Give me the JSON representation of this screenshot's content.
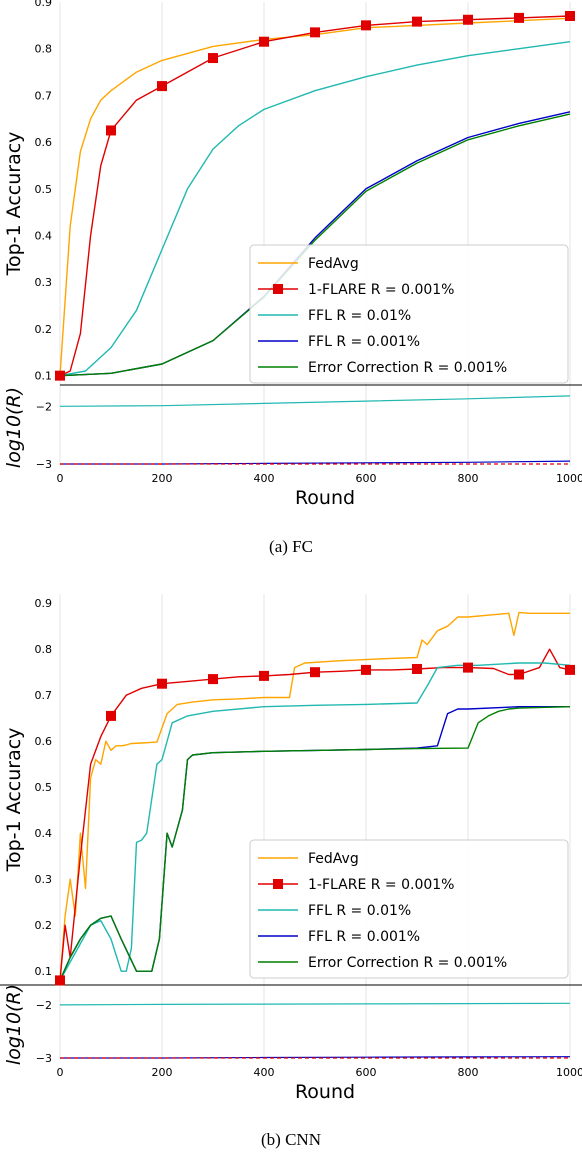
{
  "chart_data": [
    {
      "type": "line",
      "caption": "(a) FC",
      "xlabel": "Round",
      "ylabel": "Top-1 Accuracy",
      "sub_ylabel": "log10(R)",
      "xlim": [
        0,
        1000
      ],
      "ylim": [
        0.08,
        0.9
      ],
      "sub_ylim": [
        -3,
        -1.7
      ],
      "x_ticks": [
        "0",
        "200",
        "400",
        "600",
        "800",
        "1000"
      ],
      "y_ticks": [
        "0.1",
        "0.2",
        "0.3",
        "0.4",
        "0.5",
        "0.6",
        "0.7",
        "0.8",
        "0.9"
      ],
      "sub_y_ticks": [
        "−2",
        "−3"
      ],
      "grid": "vertical",
      "legend_position": "lower-right",
      "series": [
        {
          "name": "FedAvg",
          "color": "#ffa500",
          "marker": "none",
          "x": [
            0,
            20,
            40,
            60,
            80,
            100,
            150,
            200,
            300,
            400,
            500,
            600,
            700,
            800,
            900,
            1000
          ],
          "y": [
            0.1,
            0.42,
            0.58,
            0.65,
            0.69,
            0.71,
            0.75,
            0.775,
            0.805,
            0.82,
            0.83,
            0.845,
            0.85,
            0.855,
            0.86,
            0.865
          ]
        },
        {
          "name": "1-FLARE R = 0.001%",
          "color": "#e00000",
          "marker": "square",
          "x": [
            0,
            20,
            40,
            60,
            80,
            100,
            150,
            200,
            300,
            400,
            500,
            600,
            700,
            800,
            900,
            1000
          ],
          "y": [
            0.1,
            0.11,
            0.19,
            0.4,
            0.55,
            0.625,
            0.69,
            0.72,
            0.78,
            0.815,
            0.835,
            0.85,
            0.858,
            0.862,
            0.866,
            0.87
          ]
        },
        {
          "name": "FFL R = 0.01%",
          "color": "#20b8b0",
          "marker": "none",
          "x": [
            0,
            50,
            100,
            150,
            200,
            250,
            300,
            350,
            400,
            500,
            600,
            700,
            800,
            900,
            1000
          ],
          "y": [
            0.1,
            0.11,
            0.16,
            0.24,
            0.37,
            0.5,
            0.585,
            0.635,
            0.67,
            0.71,
            0.74,
            0.765,
            0.785,
            0.8,
            0.815
          ]
        },
        {
          "name": "FFL R = 0.001%",
          "color": "#0000c8",
          "marker": "none",
          "x": [
            0,
            100,
            200,
            300,
            400,
            500,
            600,
            700,
            800,
            900,
            1000
          ],
          "y": [
            0.1,
            0.105,
            0.125,
            0.175,
            0.27,
            0.395,
            0.5,
            0.56,
            0.61,
            0.64,
            0.665
          ]
        },
        {
          "name": "Error Correction R = 0.001%",
          "color": "#008000",
          "marker": "none",
          "x": [
            0,
            100,
            200,
            300,
            400,
            500,
            600,
            700,
            800,
            900,
            1000
          ],
          "y": [
            0.1,
            0.105,
            0.125,
            0.175,
            0.268,
            0.39,
            0.495,
            0.555,
            0.605,
            0.635,
            0.66
          ]
        }
      ],
      "sub_series": [
        {
          "name": "FFL R = 0.01%",
          "color": "#20b8b0",
          "dash": "solid",
          "x": [
            0,
            200,
            400,
            600,
            800,
            1000
          ],
          "y": [
            -2.0,
            -1.99,
            -1.95,
            -1.91,
            -1.87,
            -1.82
          ]
        },
        {
          "name": "FFL R = 0.001%",
          "color": "#0000c8",
          "dash": "solid",
          "x": [
            0,
            200,
            400,
            600,
            800,
            1000
          ],
          "y": [
            -3.0,
            -3.0,
            -2.99,
            -2.98,
            -2.97,
            -2.95
          ]
        },
        {
          "name": "1-FLARE R = 0.001%",
          "color": "#e00000",
          "dash": "dashed",
          "x": [
            0,
            200,
            400,
            600,
            800,
            1000
          ],
          "y": [
            -3.0,
            -3.0,
            -3.0,
            -3.0,
            -3.0,
            -3.0
          ]
        }
      ]
    },
    {
      "type": "line",
      "caption": "(b) CNN",
      "xlabel": "Round",
      "ylabel": "Top-1 Accuracy",
      "sub_ylabel": "log10(R)",
      "xlim": [
        0,
        1000
      ],
      "ylim": [
        0.07,
        0.92
      ],
      "sub_ylim": [
        -3,
        -1.7
      ],
      "x_ticks": [
        "0",
        "200",
        "400",
        "600",
        "800",
        "1000"
      ],
      "y_ticks": [
        "0.1",
        "0.2",
        "0.3",
        "0.4",
        "0.5",
        "0.6",
        "0.7",
        "0.8",
        "0.9"
      ],
      "sub_y_ticks": [
        "−2",
        "−3"
      ],
      "grid": "vertical",
      "legend_position": "lower-right",
      "series": [
        {
          "name": "FedAvg",
          "color": "#ffa500",
          "marker": "none",
          "x": [
            0,
            10,
            20,
            30,
            40,
            50,
            60,
            70,
            80,
            90,
            100,
            110,
            120,
            130,
            140,
            160,
            190,
            210,
            230,
            260,
            300,
            350,
            400,
            450,
            460,
            480,
            550,
            650,
            700,
            710,
            720,
            740,
            760,
            780,
            800,
            850,
            880,
            890,
            900,
            920,
            1000
          ],
          "y": [
            0.08,
            0.22,
            0.3,
            0.22,
            0.4,
            0.28,
            0.52,
            0.56,
            0.55,
            0.6,
            0.58,
            0.59,
            0.59,
            0.592,
            0.595,
            0.596,
            0.598,
            0.66,
            0.68,
            0.685,
            0.69,
            0.692,
            0.695,
            0.695,
            0.76,
            0.77,
            0.775,
            0.78,
            0.782,
            0.82,
            0.81,
            0.84,
            0.85,
            0.87,
            0.87,
            0.875,
            0.878,
            0.83,
            0.88,
            0.878,
            0.878
          ]
        },
        {
          "name": "1-FLARE R = 0.001%",
          "color": "#e00000",
          "marker": "square",
          "x": [
            0,
            10,
            20,
            40,
            60,
            80,
            100,
            130,
            160,
            200,
            250,
            300,
            350,
            400,
            450,
            500,
            550,
            600,
            650,
            700,
            750,
            800,
            850,
            880,
            900,
            940,
            960,
            980,
            1000
          ],
          "y": [
            0.08,
            0.2,
            0.13,
            0.35,
            0.55,
            0.61,
            0.655,
            0.7,
            0.715,
            0.725,
            0.73,
            0.735,
            0.74,
            0.742,
            0.745,
            0.75,
            0.752,
            0.755,
            0.755,
            0.757,
            0.76,
            0.76,
            0.758,
            0.745,
            0.745,
            0.76,
            0.8,
            0.76,
            0.755
          ]
        },
        {
          "name": "FFL R = 0.01%",
          "color": "#20b8b0",
          "marker": "none",
          "x": [
            0,
            20,
            40,
            60,
            80,
            100,
            120,
            130,
            140,
            150,
            160,
            170,
            190,
            200,
            220,
            250,
            300,
            400,
            500,
            600,
            700,
            720,
            740,
            780,
            800,
            820,
            900,
            950,
            1000
          ],
          "y": [
            0.08,
            0.12,
            0.16,
            0.2,
            0.21,
            0.17,
            0.1,
            0.1,
            0.15,
            0.38,
            0.385,
            0.4,
            0.55,
            0.56,
            0.64,
            0.655,
            0.665,
            0.675,
            0.678,
            0.68,
            0.683,
            0.72,
            0.76,
            0.765,
            0.765,
            0.765,
            0.77,
            0.77,
            0.765
          ]
        },
        {
          "name": "FFL R = 0.001%",
          "color": "#0000c8",
          "marker": "none",
          "x": [
            0,
            20,
            40,
            60,
            80,
            100,
            120,
            150,
            160,
            180,
            195,
            210,
            220,
            240,
            250,
            260,
            300,
            400,
            500,
            600,
            700,
            740,
            760,
            780,
            800,
            900,
            1000
          ],
          "y": [
            0.08,
            0.13,
            0.17,
            0.2,
            0.215,
            0.22,
            0.17,
            0.1,
            0.1,
            0.1,
            0.17,
            0.4,
            0.37,
            0.45,
            0.56,
            0.57,
            0.575,
            0.578,
            0.58,
            0.582,
            0.585,
            0.59,
            0.66,
            0.67,
            0.67,
            0.675,
            0.675
          ]
        },
        {
          "name": "Error Correction R = 0.001%",
          "color": "#008000",
          "marker": "none",
          "x": [
            0,
            20,
            40,
            60,
            80,
            100,
            120,
            150,
            160,
            180,
            195,
            210,
            220,
            240,
            250,
            260,
            300,
            400,
            500,
            600,
            700,
            800,
            820,
            840,
            860,
            880,
            900,
            1000
          ],
          "y": [
            0.08,
            0.13,
            0.17,
            0.2,
            0.215,
            0.22,
            0.17,
            0.1,
            0.1,
            0.1,
            0.17,
            0.4,
            0.37,
            0.45,
            0.56,
            0.57,
            0.575,
            0.578,
            0.58,
            0.582,
            0.584,
            0.585,
            0.64,
            0.655,
            0.665,
            0.67,
            0.672,
            0.675
          ]
        }
      ],
      "sub_series": [
        {
          "name": "FFL R = 0.01%",
          "color": "#20b8b0",
          "dash": "solid",
          "x": [
            0,
            200,
            400,
            600,
            800,
            1000
          ],
          "y": [
            -2.0,
            -1.99,
            -1.985,
            -1.98,
            -1.975,
            -1.97
          ]
        },
        {
          "name": "FFL R = 0.001%",
          "color": "#0000c8",
          "dash": "solid",
          "x": [
            0,
            200,
            400,
            600,
            800,
            1000
          ],
          "y": [
            -3.0,
            -3.0,
            -2.99,
            -2.985,
            -2.98,
            -2.975
          ]
        },
        {
          "name": "1-FLARE R = 0.001%",
          "color": "#e00000",
          "dash": "dashed",
          "x": [
            0,
            200,
            400,
            600,
            800,
            1000
          ],
          "y": [
            -3.0,
            -3.0,
            -3.0,
            -3.0,
            -3.0,
            -3.0
          ]
        }
      ]
    }
  ]
}
